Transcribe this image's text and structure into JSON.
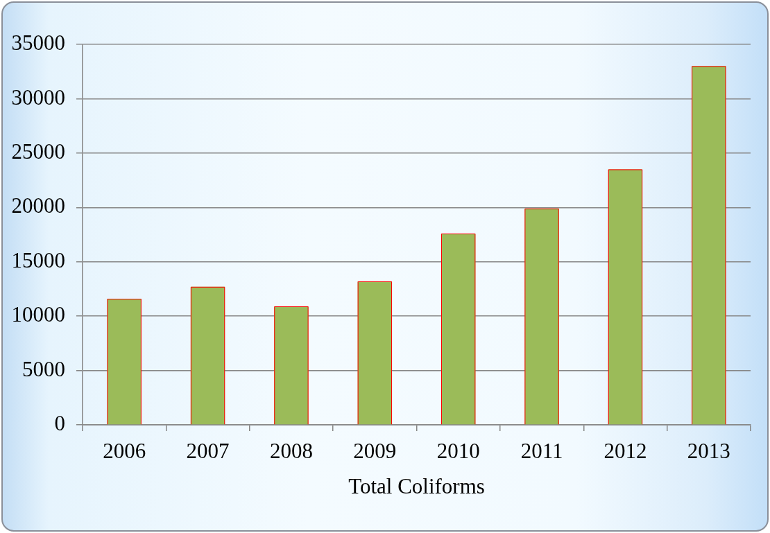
{
  "chart_data": {
    "type": "bar",
    "xlabel": "Total Coliforms",
    "categories": [
      "2006",
      "2007",
      "2008",
      "2009",
      "2010",
      "2011",
      "2012",
      "2013"
    ],
    "values": [
      11600,
      12700,
      10900,
      13200,
      17600,
      19900,
      23500,
      33000
    ],
    "color": "#9bbb59",
    "ylim": [
      0,
      35000
    ],
    "yticks": [
      0,
      5000,
      10000,
      15000,
      20000,
      25000,
      30000,
      35000
    ],
    "grid": "y"
  }
}
